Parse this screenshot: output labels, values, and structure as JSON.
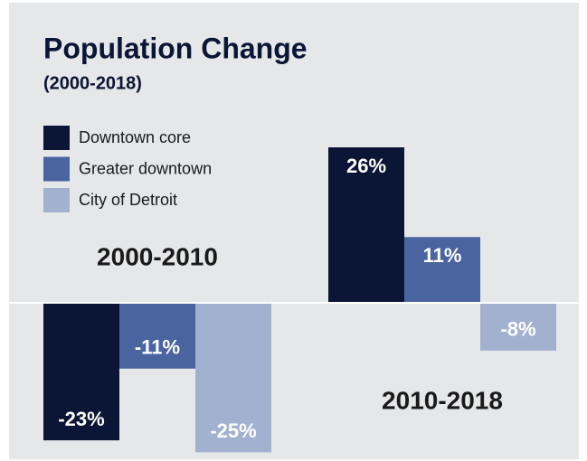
{
  "chart_data": {
    "type": "bar",
    "title": "Population Change",
    "subtitle": "(2000-2018)",
    "categories": [
      "2000-2010",
      "2010-2018"
    ],
    "series": [
      {
        "name": "Downtown core",
        "color": "#0b1535",
        "values": [
          -23,
          26
        ],
        "value_labels": [
          "-23%",
          "26%"
        ]
      },
      {
        "name": "Greater downtown",
        "color": "#4a64a0",
        "values": [
          -11,
          11
        ],
        "value_labels": [
          "-11%",
          "11%"
        ]
      },
      {
        "name": "City of Detroit",
        "color": "#a3b1d0",
        "values": [
          -25,
          -8
        ],
        "value_labels": [
          "-25%",
          "-8%"
        ]
      }
    ],
    "legend": "upper left"
  }
}
